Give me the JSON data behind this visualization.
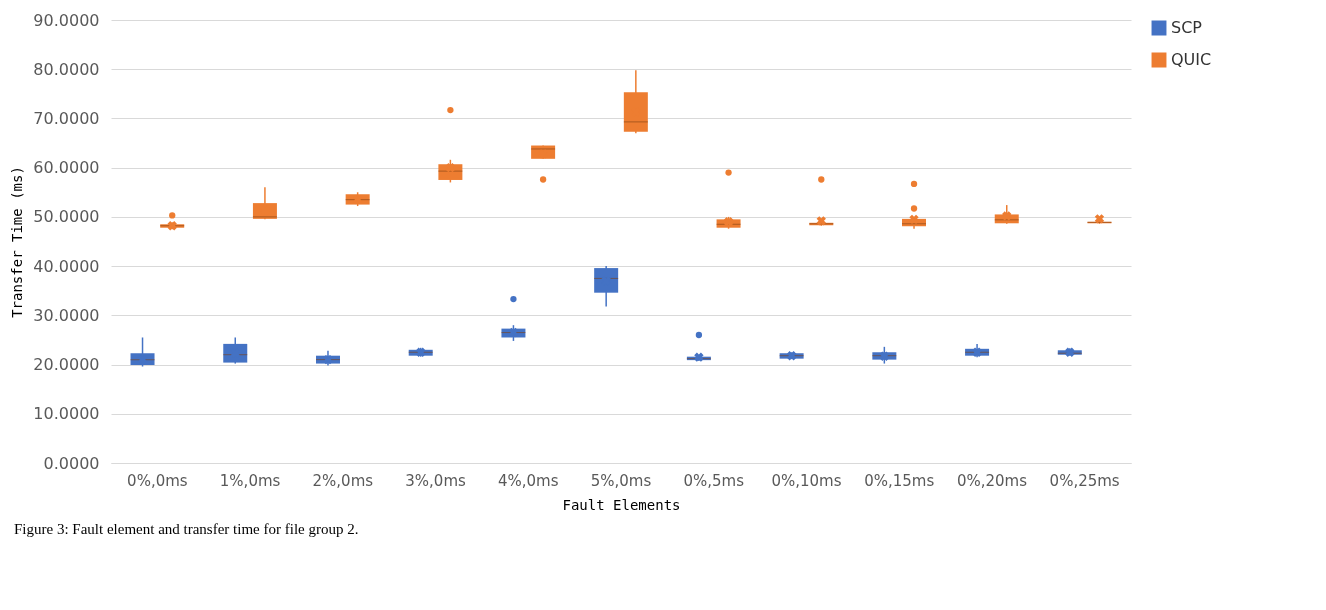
{
  "chart_data": {
    "type": "box",
    "xlabel": "Fault Elements",
    "ylabel": "Transfer Time (ms)",
    "categories": [
      "0%,0ms",
      "1%,0ms",
      "2%,0ms",
      "3%,0ms",
      "4%,0ms",
      "5%,0ms",
      "0%,5ms",
      "0%,10ms",
      "0%,15ms",
      "0%,20ms",
      "0%,25ms"
    ],
    "series": [
      {
        "name": "SCP",
        "color": "#4472c4",
        "boxes": [
          {
            "low": 19.6,
            "q1": 19.9,
            "median": 21,
            "q3": 22.3,
            "high": 25.5,
            "mean": 21
          },
          {
            "low": 20.2,
            "q1": 20.4,
            "median": 22,
            "q3": 24.2,
            "high": 25.5,
            "mean": 22.3
          },
          {
            "low": 19.8,
            "q1": 20.2,
            "median": 21,
            "q3": 21.8,
            "high": 22.8,
            "mean": 21
          },
          {
            "low": 21.6,
            "q1": 21.8,
            "median": 22.5,
            "q3": 23,
            "high": 23.4,
            "mean": 22.5
          },
          {
            "low": 24.8,
            "q1": 25.5,
            "median": 26.5,
            "q3": 27.3,
            "high": 28,
            "mean": 26.5,
            "outliers": [
              33.3
            ]
          },
          {
            "low": 31.8,
            "q1": 34.6,
            "median": 37.5,
            "q3": 39.6,
            "high": 40,
            "mean": 37
          },
          {
            "low": 20.7,
            "q1": 20.9,
            "median": 21.2,
            "q3": 21.6,
            "high": 21.8,
            "mean": 21.5,
            "outliers": [
              26
            ]
          },
          {
            "low": 21.1,
            "q1": 21.2,
            "median": 21.8,
            "q3": 22.3,
            "high": 22.5,
            "mean": 21.8
          },
          {
            "low": 20.2,
            "q1": 21,
            "median": 21.8,
            "q3": 22.5,
            "high": 23.6,
            "mean": 21.7
          },
          {
            "low": 21.5,
            "q1": 21.8,
            "median": 22.5,
            "q3": 23.2,
            "high": 24.2,
            "mean": 22.5
          },
          {
            "low": 21.8,
            "q1": 22,
            "median": 22.3,
            "q3": 22.9,
            "high": 23.3,
            "mean": 22.5
          }
        ]
      },
      {
        "name": "QUIC",
        "color": "#ed7d31",
        "boxes": [
          {
            "low": 47.5,
            "q1": 47.8,
            "median": 48.2,
            "q3": 48.5,
            "high": 48.9,
            "mean": 48.2,
            "outliers": [
              50.3
            ]
          },
          {
            "low": 49.5,
            "q1": 49.6,
            "median": 50,
            "q3": 52.8,
            "high": 56,
            "mean": 51.3
          },
          {
            "low": 52.2,
            "q1": 52.5,
            "median": 53.5,
            "q3": 54.6,
            "high": 55,
            "mean": 53.5
          },
          {
            "low": 57,
            "q1": 57.5,
            "median": 59.3,
            "q3": 60.7,
            "high": 61.6,
            "mean": 60,
            "outliers": [
              71.7
            ]
          },
          {
            "low": 61.8,
            "q1": 61.8,
            "median": 63.8,
            "q3": 64.5,
            "high": 64.5,
            "mean": 62.8,
            "outliers": [
              57.6
            ]
          },
          {
            "low": 67,
            "q1": 67.3,
            "median": 69.3,
            "q3": 75.3,
            "high": 79.8,
            "mean": 71.3
          },
          {
            "low": 47.6,
            "q1": 47.8,
            "median": 48.5,
            "q3": 49.5,
            "high": 50,
            "mean": 49,
            "outliers": [
              59
            ]
          },
          {
            "low": 48.2,
            "q1": 48.3,
            "median": 48.6,
            "q3": 48.8,
            "high": 48.9,
            "mean": 49.2,
            "outliers": [
              57.6
            ]
          },
          {
            "low": 47.6,
            "q1": 48.1,
            "median": 48.6,
            "q3": 49.6,
            "high": 50,
            "mean": 49.5,
            "outliers": [
              51.7,
              56.7
            ]
          },
          {
            "low": 48.6,
            "q1": 48.7,
            "median": 49.4,
            "q3": 50.5,
            "high": 52.4,
            "mean": 50.2
          },
          {
            "low": 48.6,
            "q1": 48.7,
            "median": 48.9,
            "q3": 49,
            "high": 49.2,
            "mean": 49.6
          }
        ]
      }
    ],
    "ylim": [
      0,
      90
    ],
    "yticks": [
      {
        "value": 0,
        "label": "0.0000"
      },
      {
        "value": 10,
        "label": "10.0000"
      },
      {
        "value": 20,
        "label": "20.0000"
      },
      {
        "value": 30,
        "label": "30.0000"
      },
      {
        "value": 40,
        "label": "40.0000"
      },
      {
        "value": 50,
        "label": "50.0000"
      },
      {
        "value": 60,
        "label": "60.0000"
      },
      {
        "value": 70,
        "label": "70.0000"
      },
      {
        "value": 80,
        "label": "80.0000"
      },
      {
        "value": 90,
        "label": "90.0000"
      }
    ],
    "grid": "y",
    "legend": "right",
    "annotations": [
      "Figure 3: Fault element and transfer time for file group 2."
    ]
  }
}
